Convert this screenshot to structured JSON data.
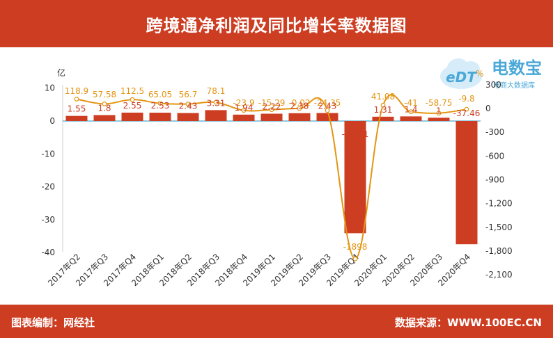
{
  "header": {
    "title": "跨境通净利润及同比增长率数据图"
  },
  "footer": {
    "left": "图表编制：网经社",
    "right": "数据来源：WWW.100EC.CN"
  },
  "logo": {
    "brand": "电数宝",
    "badge": "eDT",
    "tagline": "电商大数据库"
  },
  "colors": {
    "bar": "#cd3d22",
    "line": "#e39512",
    "banner": "#cd3d22",
    "baseline": "#4aa8c9"
  },
  "chart_data": {
    "type": "bar",
    "categories": [
      "2017年Q2",
      "2017年Q3",
      "2017年Q4",
      "2018年Q1",
      "2018年Q2",
      "2018年Q3",
      "2018年Q4",
      "2019年Q1",
      "2019年Q2",
      "2019年Q3",
      "2019年Q4",
      "2020年Q1",
      "2020年Q2",
      "2020年Q3",
      "2020年Q4"
    ],
    "ylabel": "亿",
    "y2label": "%",
    "ylim": [
      -40,
      10
    ],
    "yticks": [
      10,
      0,
      -10,
      -20,
      -30,
      -40
    ],
    "y2lim": [
      -2100,
      300
    ],
    "y2ticks": [
      "300",
      "0",
      "-300",
      "-600",
      "-900",
      "-1,200",
      "-1,500",
      "-1,800",
      "-2,100"
    ],
    "series": [
      {
        "name": "",
        "type": "bar",
        "axis": "left",
        "values": [
          1.55,
          1.8,
          2.55,
          2.53,
          2.43,
          3.31,
          1.94,
          2.22,
          2.38,
          2.43,
          -34.11,
          1.31,
          1.4,
          1,
          -37.46
        ],
        "labels": [
          "1.55",
          "1.8",
          "2.55",
          "2.53",
          "2.43",
          "3.31",
          "1.94",
          "2.22",
          "2.38",
          "2.43",
          "-34.11",
          "1.31",
          "1.4",
          "1",
          "-37.46"
        ]
      },
      {
        "name": "",
        "type": "line",
        "axis": "right",
        "values": [
          118.9,
          57.58,
          112.5,
          65.05,
          56.7,
          78.1,
          -23.9,
          -15.29,
          -0.02,
          -24.35,
          -1898,
          41.08,
          -41,
          -58.75,
          -9.8
        ],
        "labels": [
          "118.9",
          "57.58",
          "112.5",
          "65.05",
          "56.7",
          "78.1",
          "-23.9",
          "-15.29",
          "-0.02",
          "-24.35",
          "-1898",
          "41.08",
          "-41",
          "-58.75",
          "-9.8"
        ]
      }
    ]
  }
}
